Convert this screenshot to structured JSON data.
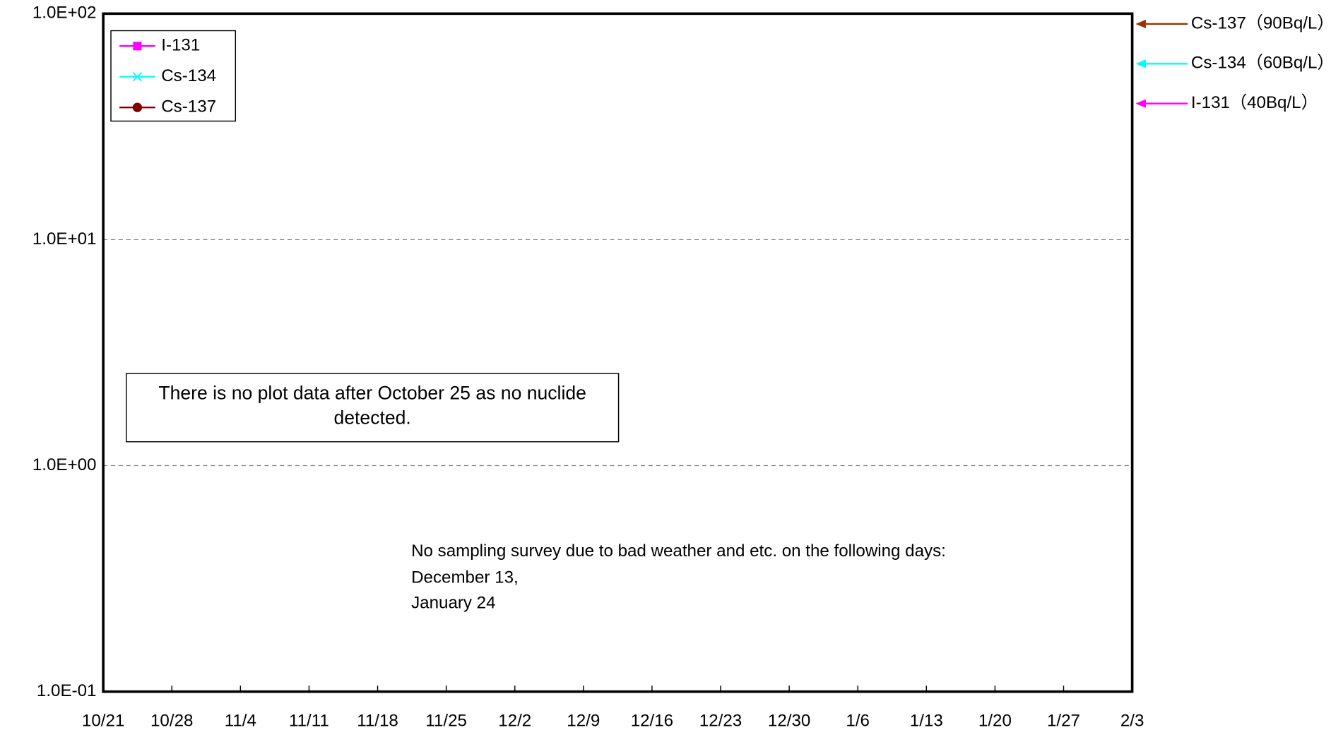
{
  "chart_data": {
    "type": "line",
    "categories": [
      "10/21",
      "10/28",
      "11/4",
      "11/11",
      "11/18",
      "11/25",
      "12/2",
      "12/9",
      "12/16",
      "12/23",
      "12/30",
      "1/6",
      "1/13",
      "1/20",
      "1/27",
      "2/3"
    ],
    "series": [
      {
        "name": "I-131",
        "color": "#ff00ff",
        "marker": "square",
        "values": [
          null,
          null,
          null,
          null,
          null,
          null,
          null,
          null,
          null,
          null,
          null,
          null,
          null,
          null,
          null,
          null
        ]
      },
      {
        "name": "Cs-134",
        "color": "#00ffff",
        "marker": "x",
        "values": [
          null,
          null,
          null,
          null,
          null,
          null,
          null,
          null,
          null,
          null,
          null,
          null,
          null,
          null,
          null,
          null
        ]
      },
      {
        "name": "Cs-137",
        "color": "#800000",
        "marker": "circle",
        "values": [
          null,
          null,
          null,
          null,
          null,
          null,
          null,
          null,
          null,
          null,
          null,
          null,
          null,
          null,
          null,
          null
        ]
      }
    ],
    "ylim": [
      0.1,
      100
    ],
    "log_y": true,
    "yticks": [
      {
        "value": 0.1,
        "label": "1.0E-01"
      },
      {
        "value": 1,
        "label": "1.0E+00"
      },
      {
        "value": 10,
        "label": "1.0E+01"
      },
      {
        "value": 100,
        "label": "1.0E+02"
      }
    ],
    "grid": true,
    "legend": "top-left",
    "reference_lines": [
      {
        "label": "Cs-137（90Bq/L）",
        "value": 90,
        "color": "#993300"
      },
      {
        "label": "Cs-134（60Bq/L）",
        "value": 60,
        "color": "#00ffff"
      },
      {
        "label": "I-131（40Bq/L）",
        "value": 40,
        "color": "#ff00ff"
      }
    ],
    "annotations": [
      "There is no plot data after October 25 as no nuclide detected.",
      [
        "No sampling survey due to bad weather and etc. on the following days:",
        "December 13,",
        "January 24"
      ]
    ]
  }
}
